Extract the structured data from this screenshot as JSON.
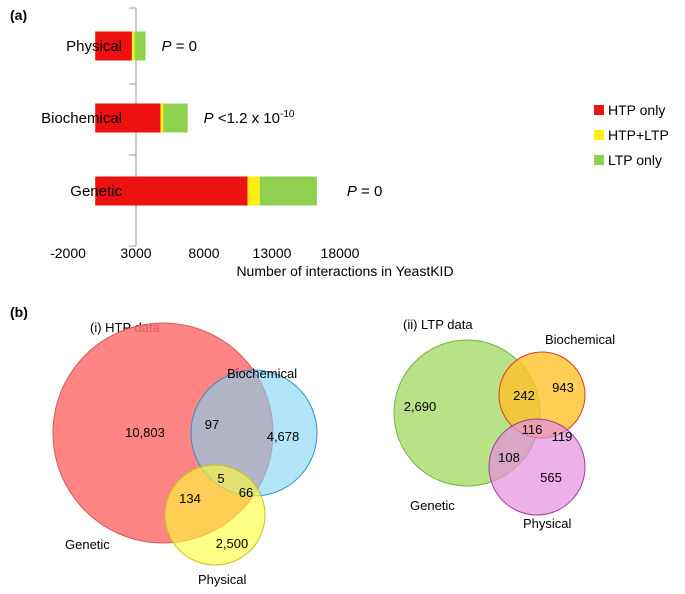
{
  "panel_a": {
    "label": "(a)",
    "chart_data": {
      "type": "bar",
      "orientation": "horizontal",
      "stacked": true,
      "categories": [
        "Physical",
        "Biochemical",
        "Genetic"
      ],
      "series": [
        {
          "name": "HTP only",
          "color": "#ee1111",
          "values": [
            2700,
            4800,
            11200
          ]
        },
        {
          "name": "HTP+LTP",
          "color": "#ffee11",
          "values": [
            200,
            200,
            900
          ]
        },
        {
          "name": "LTP only",
          "color": "#8fd14f",
          "values": [
            800,
            1800,
            4200
          ]
        }
      ],
      "xlim": [
        -2000,
        18000
      ],
      "xticks": [
        "-2000",
        "3000",
        "8000",
        "13000",
        "18000"
      ],
      "xlabel": "Number of interactions in YeastKID",
      "annotations": [
        {
          "category": "Physical",
          "p": "P",
          "text": " = 0",
          "exp": ""
        },
        {
          "category": "Biochemical",
          "p": "P",
          "text": " <1.2 x 10",
          "exp": "-10"
        },
        {
          "category": "Genetic",
          "p": "P",
          "text": " = 0",
          "exp": ""
        }
      ],
      "legend": [
        "HTP only",
        "HTP+LTP",
        "LTP only"
      ],
      "legend_position": "right"
    }
  },
  "panel_b": {
    "label": "(b)",
    "htp": {
      "title": "(i) HTP data",
      "sets": [
        {
          "name": "Genetic",
          "color": "#ff6f6f"
        },
        {
          "name": "Biochemical",
          "color": "#7fd3f5"
        },
        {
          "name": "Physical",
          "color": "#ffff33"
        }
      ],
      "regions": {
        "genetic_only": "10,803",
        "biochemical_only": "4,678",
        "physical_only": "2,500",
        "genetic_biochemical": "97",
        "genetic_physical": "134",
        "biochemical_physical": "66",
        "all": "5"
      }
    },
    "ltp": {
      "title": "(ii) LTP data",
      "sets": [
        {
          "name": "Genetic",
          "color": "#a6d96a"
        },
        {
          "name": "Biochemical",
          "color": "#ffc22b"
        },
        {
          "name": "Physical",
          "color": "#e68fe0"
        }
      ],
      "regions": {
        "genetic_only": "2,690",
        "biochemical_only": "943",
        "physical_only": "565",
        "genetic_biochemical": "242",
        "genetic_physical": "108",
        "biochemical_physical": "119",
        "all": "116"
      }
    }
  }
}
